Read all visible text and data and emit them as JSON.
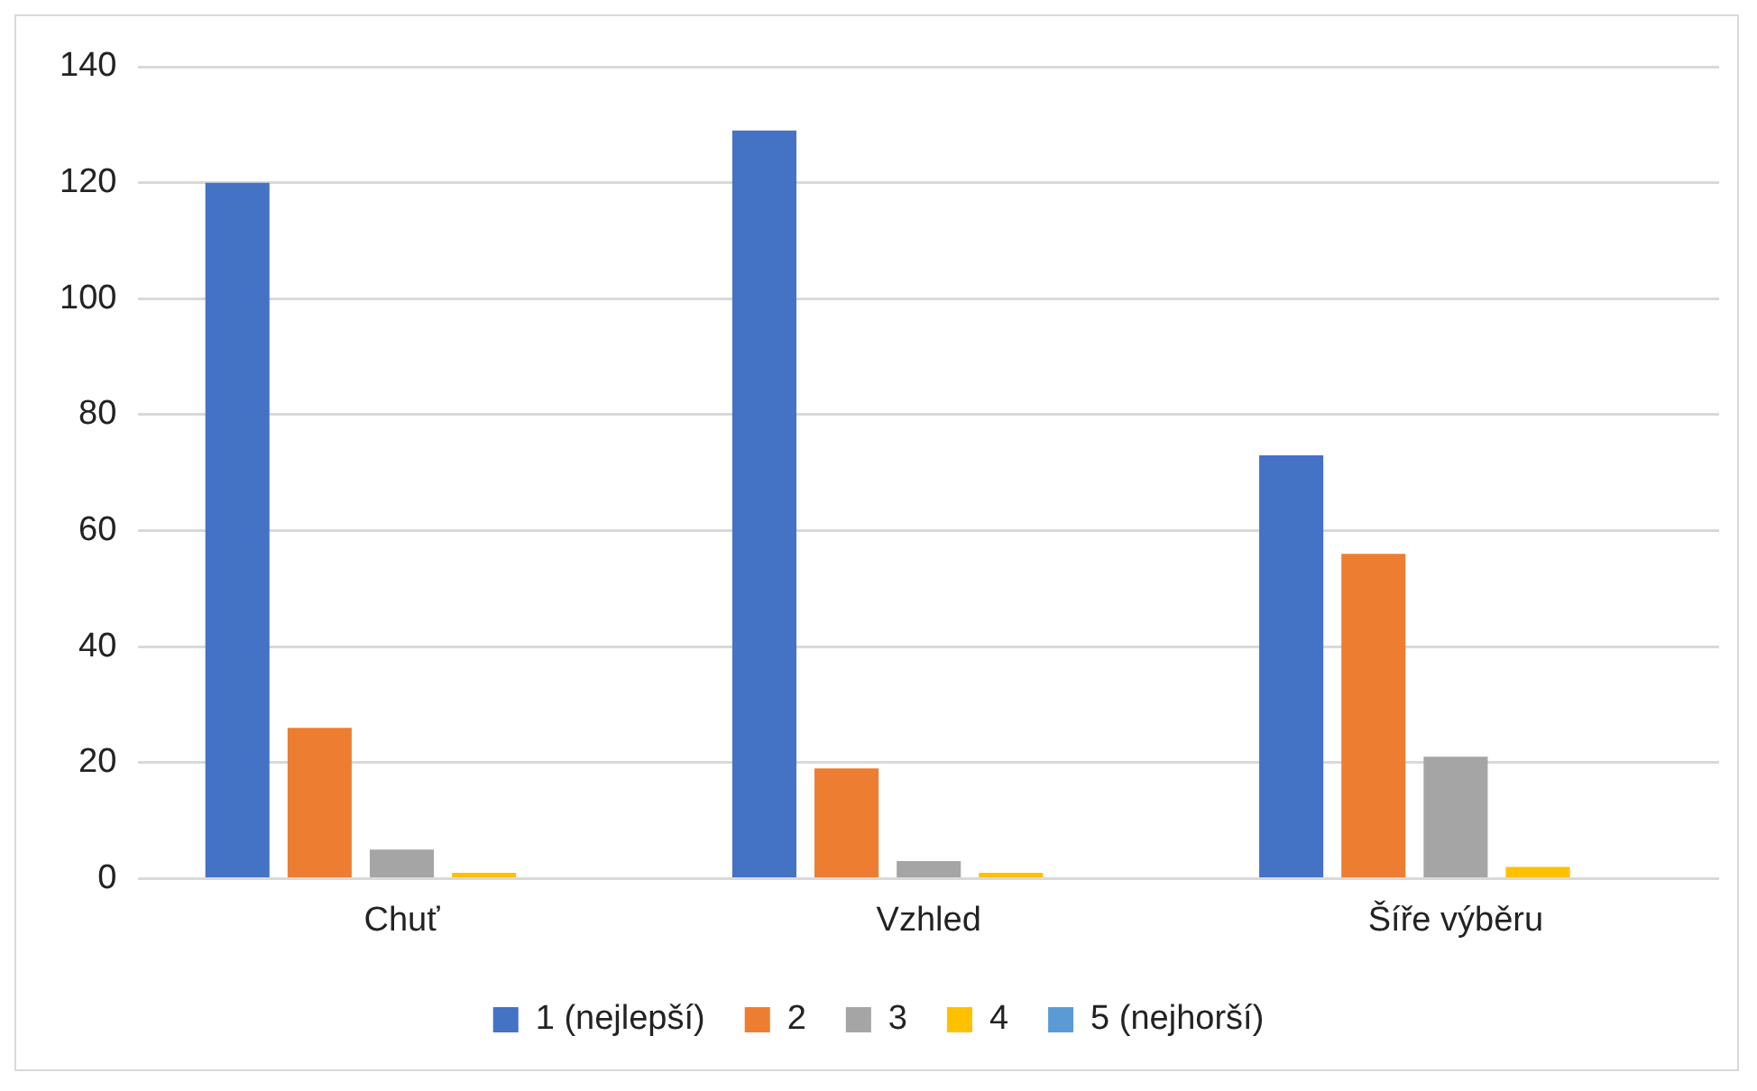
{
  "chart_data": {
    "type": "bar",
    "categories": [
      "Chuť",
      "Vzhled",
      "Šíře výběru"
    ],
    "series": [
      {
        "name": "1 (nejlepší)",
        "color": "#4472c4",
        "values": [
          120,
          129,
          73
        ]
      },
      {
        "name": "2",
        "color": "#ed7d31",
        "values": [
          26,
          19,
          56
        ]
      },
      {
        "name": "3",
        "color": "#a5a5a5",
        "values": [
          5,
          3,
          21
        ]
      },
      {
        "name": "4",
        "color": "#ffc000",
        "values": [
          1,
          1,
          2
        ]
      },
      {
        "name": "5 (nejhorší)",
        "color": "#5b9bd5",
        "values": [
          0,
          0,
          0
        ]
      }
    ],
    "ylim": [
      0,
      140
    ],
    "yticks": [
      0,
      20,
      40,
      60,
      80,
      100,
      120,
      140
    ],
    "grid": "y",
    "legend": "bottom"
  }
}
